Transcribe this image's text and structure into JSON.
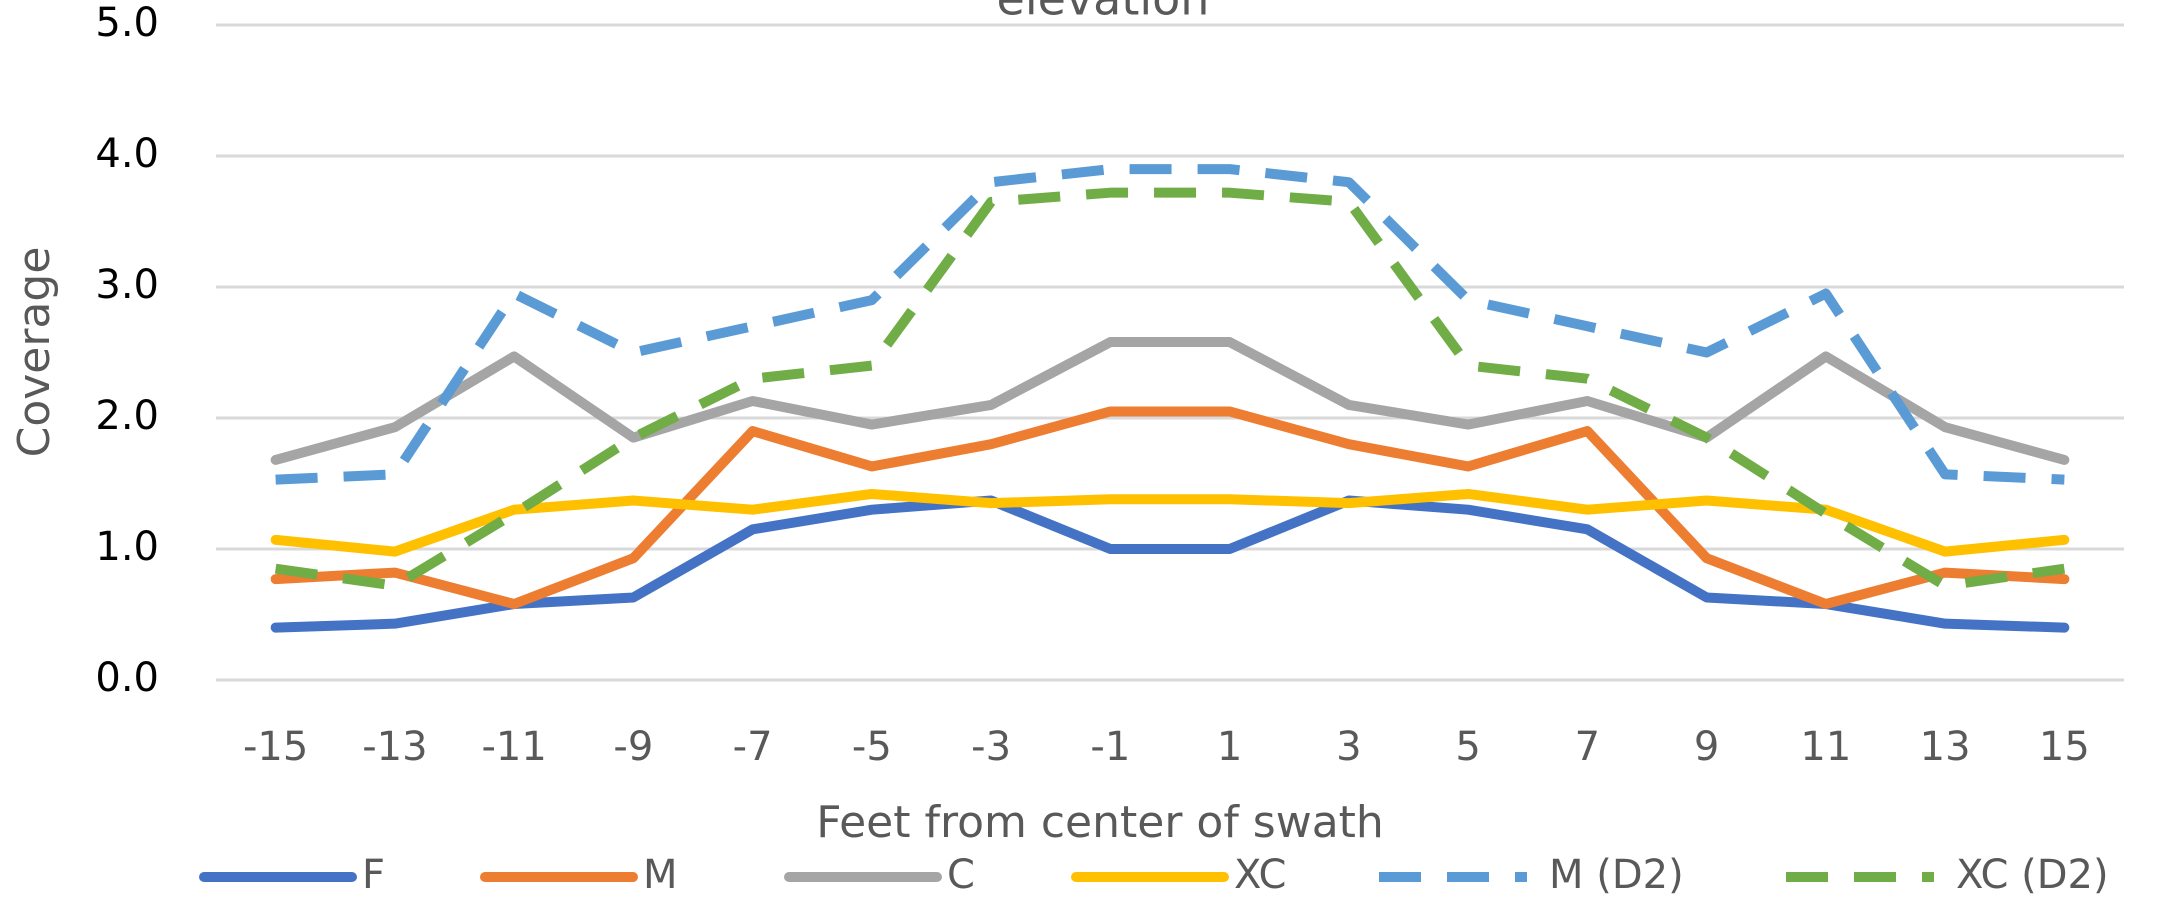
{
  "chart_data": {
    "type": "line",
    "title": "elevation",
    "x_label": "Feet from center of swath",
    "y_label": "Coverage",
    "categories": [
      "-15",
      "-13",
      "-11",
      "-9",
      "-7",
      "-5",
      "-3",
      "-1",
      "1",
      "3",
      "5",
      "7",
      "9",
      "11",
      "13",
      "15"
    ],
    "series": [
      {
        "name": "F",
        "color": "#4472c4",
        "dash": false,
        "values": [
          0.4,
          0.43,
          0.58,
          0.63,
          1.15,
          1.3,
          1.37,
          1.0,
          1.0,
          1.37,
          1.3,
          1.15,
          0.63,
          0.58,
          0.43,
          0.4
        ]
      },
      {
        "name": "M",
        "color": "#ed7d31",
        "dash": false,
        "values": [
          0.77,
          0.82,
          0.58,
          0.93,
          1.9,
          1.63,
          1.8,
          2.05,
          2.05,
          1.8,
          1.63,
          1.9,
          0.93,
          0.58,
          0.82,
          0.77
        ]
      },
      {
        "name": "C",
        "color": "#a5a5a5",
        "dash": false,
        "values": [
          1.68,
          1.93,
          2.47,
          1.85,
          2.13,
          1.95,
          2.1,
          2.58,
          2.58,
          2.1,
          1.95,
          2.13,
          1.85,
          2.47,
          1.93,
          1.68
        ]
      },
      {
        "name": "XC",
        "color": "#ffc000",
        "dash": false,
        "values": [
          1.07,
          0.98,
          1.3,
          1.37,
          1.3,
          1.42,
          1.35,
          1.38,
          1.38,
          1.35,
          1.42,
          1.3,
          1.37,
          1.3,
          0.98,
          1.07
        ]
      },
      {
        "name": "M (D2)",
        "color": "#5b9bd5",
        "dash": true,
        "values": [
          1.53,
          1.57,
          2.95,
          2.5,
          2.7,
          2.9,
          3.8,
          3.9,
          3.9,
          3.8,
          2.9,
          2.7,
          2.5,
          2.95,
          1.57,
          1.53
        ]
      },
      {
        "name": "XC (D2)",
        "color": "#70ad47",
        "dash": true,
        "values": [
          0.85,
          0.72,
          1.27,
          1.85,
          2.3,
          2.4,
          3.65,
          3.72,
          3.72,
          3.65,
          2.4,
          2.3,
          1.85,
          1.27,
          0.72,
          0.85
        ]
      }
    ],
    "ylim": [
      0,
      5
    ],
    "yticks": [
      {
        "value": 0,
        "label": "0.0"
      },
      {
        "value": 1,
        "label": "1.0"
      },
      {
        "value": 2,
        "label": "2.0"
      },
      {
        "value": 3,
        "label": "3.0"
      },
      {
        "value": 4,
        "label": "4.0"
      },
      {
        "value": 5,
        "label": "5.0"
      }
    ],
    "grid": true,
    "legend": "bottom"
  }
}
